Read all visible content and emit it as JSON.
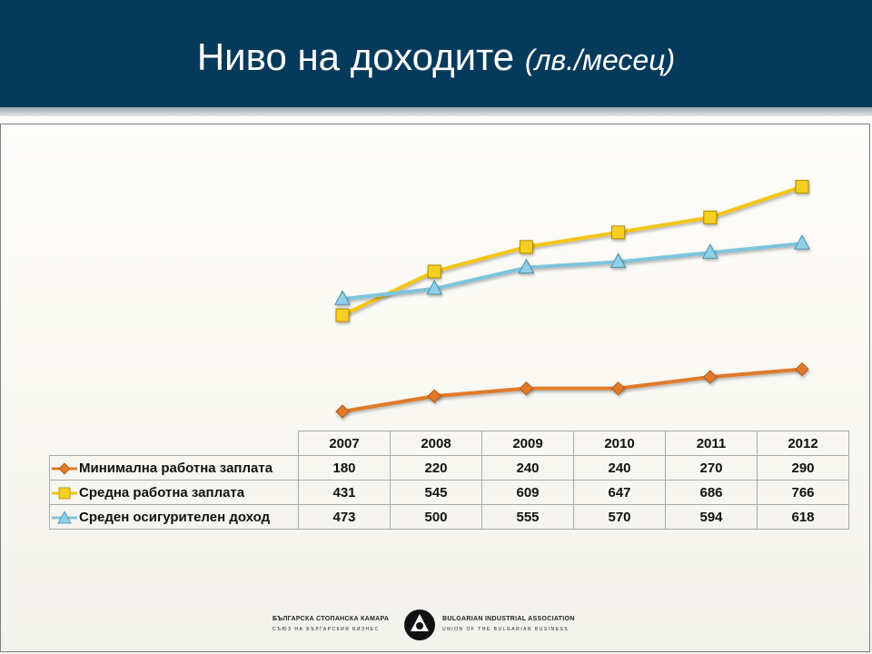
{
  "slide": {
    "title": "Ниво на доходите",
    "title_unit": "(лв./месец)"
  },
  "chart_data": {
    "type": "line",
    "categories": [
      "2007",
      "2008",
      "2009",
      "2010",
      "2011",
      "2012"
    ],
    "series": [
      {
        "name": "Минимална работна заплата",
        "values": [
          180,
          220,
          240,
          240,
          270,
          290
        ],
        "color": "#e07a2c",
        "marker": "diamond"
      },
      {
        "name": "Средна работна заплата",
        "values": [
          431,
          545,
          609,
          647,
          686,
          766
        ],
        "color": "#f5c518",
        "marker": "square"
      },
      {
        "name": "Среден осигурителен доход",
        "values": [
          473,
          500,
          555,
          570,
          594,
          618
        ],
        "color": "#7ec4dd",
        "marker": "triangle"
      }
    ],
    "ylim": [
      0,
      900
    ],
    "grid": false,
    "legend": "data-table"
  },
  "table": {
    "values_formatted": [
      [
        "180",
        "220",
        "240",
        "240",
        "270",
        "290"
      ],
      [
        "431",
        "545",
        "609",
        "647",
        "686",
        "766"
      ],
      [
        "473",
        "500",
        "555",
        "570",
        "594",
        "618"
      ]
    ]
  },
  "footer": {
    "org_bg": "БЪЛГАРСКА СТОПАНСКА КАМАРА",
    "org_bg_sub": "СЪЮЗ НА БЪЛГАРСКИЯ БИЗНЕС",
    "org_en": "BULGARIAN INDUSTRIAL ASSOCIATION",
    "org_en_sub": "UNION OF THE BULGARIAN BUSINESS"
  }
}
